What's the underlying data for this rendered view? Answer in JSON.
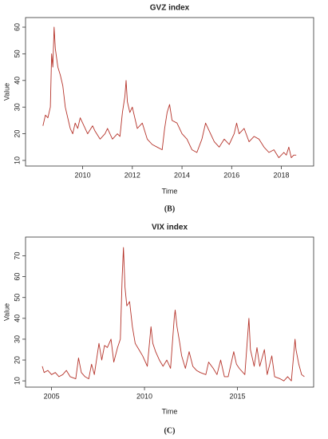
{
  "chart_data": [
    {
      "type": "line",
      "title": "GVZ index",
      "x_label": "Time",
      "y_label": "Value",
      "panel_label": "(B)",
      "xlim": [
        2007.7,
        2019.3
      ],
      "xticks": [
        2010,
        2012,
        2014,
        2016,
        2018
      ],
      "ylim": [
        7.9,
        63.6
      ],
      "yticks": [
        10,
        20,
        30,
        40,
        50,
        60
      ],
      "series": [
        {
          "name": "GVZ",
          "color": "#b5332a",
          "x": [
            2008.4,
            2008.5,
            2008.6,
            2008.7,
            2008.75,
            2008.8,
            2008.85,
            2008.9,
            2009.0,
            2009.1,
            2009.2,
            2009.3,
            2009.4,
            2009.5,
            2009.6,
            2009.7,
            2009.8,
            2009.9,
            2010.0,
            2010.2,
            2010.4,
            2010.5,
            2010.7,
            2010.9,
            2011.0,
            2011.2,
            2011.4,
            2011.5,
            2011.6,
            2011.7,
            2011.75,
            2011.8,
            2011.9,
            2012.0,
            2012.2,
            2012.4,
            2012.6,
            2012.8,
            2013.0,
            2013.2,
            2013.3,
            2013.4,
            2013.5,
            2013.6,
            2013.8,
            2014.0,
            2014.2,
            2014.4,
            2014.6,
            2014.8,
            2014.95,
            2015.1,
            2015.3,
            2015.5,
            2015.7,
            2015.9,
            2016.1,
            2016.2,
            2016.3,
            2016.5,
            2016.7,
            2016.9,
            2017.1,
            2017.3,
            2017.5,
            2017.7,
            2017.9,
            2018.1,
            2018.2,
            2018.3,
            2018.4,
            2018.5,
            2018.6
          ],
          "values": [
            23,
            27,
            26,
            30,
            50,
            45,
            60,
            52,
            45,
            42,
            38,
            30,
            26,
            22,
            20,
            24,
            22,
            26,
            24,
            20,
            23,
            21,
            18,
            20,
            22,
            18,
            20,
            19,
            28,
            34,
            40,
            32,
            28,
            30,
            22,
            24,
            18,
            16,
            15,
            14,
            22,
            28,
            31,
            25,
            24,
            20,
            18,
            14,
            13,
            18,
            24,
            21,
            17,
            15,
            18,
            16,
            20,
            24,
            20,
            22,
            17,
            19,
            18,
            15,
            13,
            14,
            11,
            13,
            12,
            15,
            11,
            12,
            12
          ]
        }
      ]
    },
    {
      "type": "line",
      "title": "VIX index",
      "x_label": "Time",
      "y_label": "Value",
      "panel_label": "(C)",
      "xlim": [
        2003.6,
        2019.1
      ],
      "xticks": [
        2005,
        2010,
        2015
      ],
      "ylim": [
        7,
        79
      ],
      "yticks": [
        10,
        20,
        30,
        40,
        50,
        60,
        70
      ],
      "series": [
        {
          "name": "VIX",
          "color": "#b5332a",
          "x": [
            2004.5,
            2004.6,
            2004.8,
            2005.0,
            2005.2,
            2005.4,
            2005.6,
            2005.8,
            2006.0,
            2006.3,
            2006.45,
            2006.6,
            2006.8,
            2007.0,
            2007.15,
            2007.3,
            2007.55,
            2007.7,
            2007.85,
            2008.0,
            2008.2,
            2008.35,
            2008.55,
            2008.7,
            2008.8,
            2008.87,
            2008.95,
            2009.05,
            2009.2,
            2009.35,
            2009.5,
            2009.7,
            2009.9,
            2010.0,
            2010.15,
            2010.35,
            2010.45,
            2010.6,
            2010.8,
            2011.0,
            2011.2,
            2011.4,
            2011.6,
            2011.65,
            2011.75,
            2011.9,
            2012.0,
            2012.2,
            2012.4,
            2012.6,
            2012.8,
            2013.0,
            2013.3,
            2013.45,
            2013.7,
            2013.9,
            2014.1,
            2014.3,
            2014.5,
            2014.8,
            2014.95,
            2015.1,
            2015.4,
            2015.62,
            2015.7,
            2015.9,
            2016.05,
            2016.2,
            2016.45,
            2016.6,
            2016.85,
            2017.0,
            2017.3,
            2017.5,
            2017.7,
            2017.9,
            2018.1,
            2018.15,
            2018.3,
            2018.45,
            2018.6
          ],
          "values": [
            17,
            14,
            15,
            13,
            14,
            12,
            13,
            15,
            12,
            11,
            21,
            14,
            12,
            11,
            18,
            13,
            28,
            20,
            27,
            26,
            30,
            19,
            26,
            30,
            60,
            74,
            55,
            46,
            48,
            36,
            28,
            25,
            22,
            20,
            17,
            36,
            28,
            24,
            20,
            17,
            20,
            16,
            40,
            44,
            36,
            28,
            22,
            16,
            24,
            17,
            15,
            14,
            13,
            19,
            16,
            13,
            20,
            12,
            12,
            24,
            18,
            16,
            13,
            40,
            25,
            17,
            26,
            17,
            25,
            13,
            22,
            12,
            11,
            10,
            12,
            10,
            30,
            25,
            18,
            13,
            12
          ]
        }
      ]
    }
  ]
}
